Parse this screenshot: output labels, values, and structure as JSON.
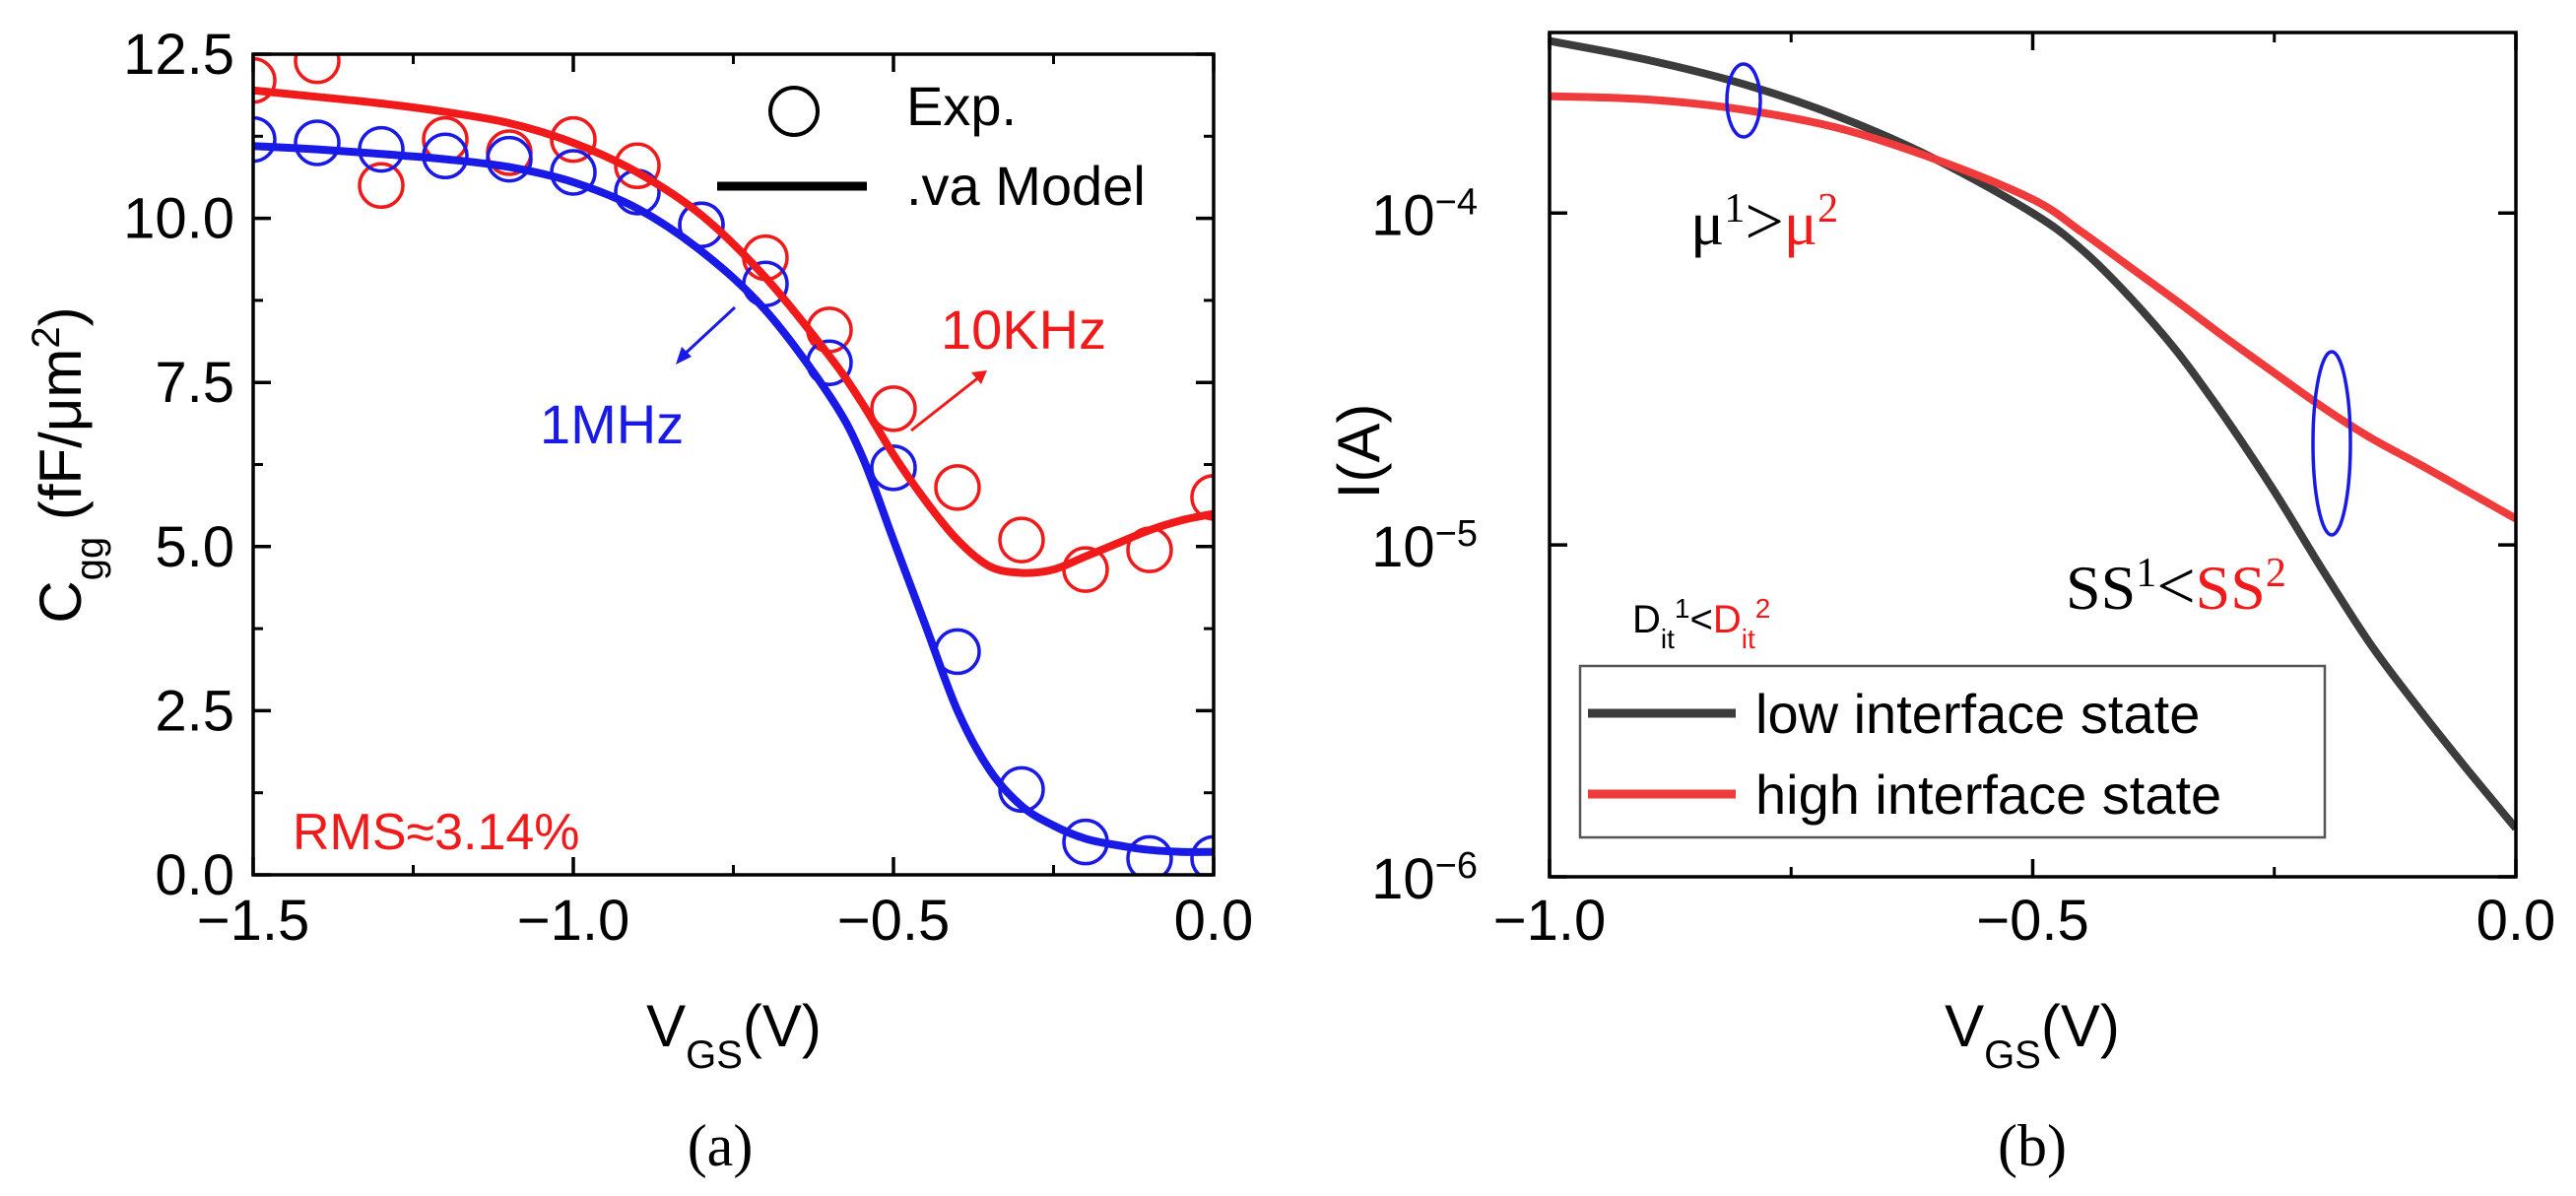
{
  "colors": {
    "red": "#f01a1a",
    "blue": "#1a1ae6",
    "black": "#000000",
    "dark": "#3c3c3c",
    "lightred": "#ef3b3b"
  },
  "chart_data": [
    {
      "id": "a",
      "type": "line",
      "panel_label": "(a)",
      "xlabel": {
        "main": "V",
        "sub": "GS",
        "tail": "(V)"
      },
      "ylabel": {
        "main": "C",
        "sub": "gg",
        "tail": " (fF/μm",
        "sup": "2",
        "close": ")"
      },
      "xlim": [
        -1.5,
        0.0
      ],
      "ylim": [
        0.0,
        12.5
      ],
      "xticks": [
        -1.5,
        -1.0,
        -0.5,
        0.0
      ],
      "xtick_labels": [
        "−1.5",
        "−1.0",
        "−0.5",
        "0.0"
      ],
      "yticks": [
        0.0,
        2.5,
        5.0,
        7.5,
        10.0,
        12.5
      ],
      "ytick_labels": [
        "0.0",
        "2.5",
        "5.0",
        "7.5",
        "10.0",
        "12.5"
      ],
      "legend": {
        "placement": "top-right",
        "entries": [
          {
            "label": "Exp.",
            "marker": "circle"
          },
          {
            "label": ".va Model",
            "marker": "line"
          }
        ]
      },
      "annotations": {
        "hf": "1MHz",
        "lf": "10KHz",
        "rms": "RMS≈3.14%"
      },
      "series": [
        {
          "name": "10KHz Exp.",
          "kind": "scatter",
          "color": "#f01a1a",
          "x": [
            -1.5,
            -1.4,
            -1.3,
            -1.2,
            -1.1,
            -1.0,
            -0.9,
            -0.8,
            -0.7,
            -0.6,
            -0.5,
            -0.4,
            -0.3,
            -0.2,
            -0.1,
            0.0
          ],
          "y": [
            12.1,
            12.4,
            10.5,
            11.2,
            11.0,
            11.2,
            10.8,
            9.9,
            9.4,
            8.3,
            7.1,
            5.9,
            5.1,
            4.65,
            4.95,
            5.75
          ]
        },
        {
          "name": "10KHz .va Model",
          "kind": "line",
          "color": "#f01a1a",
          "x": [
            -1.5,
            -1.4,
            -1.3,
            -1.2,
            -1.1,
            -1.0,
            -0.9,
            -0.8,
            -0.7,
            -0.6,
            -0.55,
            -0.5,
            -0.45,
            -0.4,
            -0.35,
            -0.3,
            -0.25,
            -0.2,
            -0.15,
            -0.1,
            -0.05,
            0.0
          ],
          "y": [
            11.95,
            11.85,
            11.75,
            11.62,
            11.45,
            11.15,
            10.7,
            10.05,
            9.1,
            7.9,
            7.2,
            6.4,
            5.7,
            5.1,
            4.7,
            4.6,
            4.65,
            4.85,
            5.05,
            5.25,
            5.4,
            5.5
          ]
        },
        {
          "name": "1MHz Exp.",
          "kind": "scatter",
          "color": "#1a1ae6",
          "x": [
            -1.5,
            -1.4,
            -1.3,
            -1.2,
            -1.1,
            -1.0,
            -0.9,
            -0.8,
            -0.7,
            -0.6,
            -0.5,
            -0.4,
            -0.3,
            -0.2,
            -0.1,
            0.0
          ],
          "y": [
            11.2,
            11.15,
            11.05,
            10.95,
            10.9,
            10.7,
            10.4,
            9.9,
            9.0,
            7.8,
            6.2,
            3.4,
            1.3,
            0.5,
            0.25,
            0.25
          ]
        },
        {
          "name": "1MHz .va Model",
          "kind": "line",
          "color": "#1a1ae6",
          "x": [
            -1.5,
            -1.4,
            -1.3,
            -1.2,
            -1.1,
            -1.0,
            -0.9,
            -0.8,
            -0.7,
            -0.6,
            -0.55,
            -0.5,
            -0.45,
            -0.4,
            -0.35,
            -0.3,
            -0.25,
            -0.2,
            -0.15,
            -0.1,
            -0.05,
            0.0
          ],
          "y": [
            11.1,
            11.05,
            10.98,
            10.9,
            10.78,
            10.55,
            10.15,
            9.5,
            8.6,
            7.3,
            6.4,
            5.1,
            3.8,
            2.5,
            1.6,
            1.05,
            0.75,
            0.55,
            0.45,
            0.38,
            0.35,
            0.35
          ]
        }
      ]
    },
    {
      "id": "b",
      "type": "line",
      "panel_label": "(b)",
      "xlabel": {
        "main": "V",
        "sub": "GS",
        "tail": "(V)"
      },
      "ylabel": {
        "main": "I(A)"
      },
      "yscale": "log",
      "xlim": [
        -1.0,
        0.0
      ],
      "ylim": [
        1e-06,
        0.00035
      ],
      "xticks": [
        -1.0,
        -0.5,
        0.0
      ],
      "xtick_labels": [
        "−1.0",
        "−0.5",
        "0.0"
      ],
      "yticks": [
        1e-06,
        1e-05,
        0.0001
      ],
      "ytick_labels": [
        {
          "base": "10",
          "exp": "−6"
        },
        {
          "base": "10",
          "exp": "−5"
        },
        {
          "base": "10",
          "exp": "−4"
        }
      ],
      "legend": {
        "placement": "bottom-left",
        "entries": [
          {
            "label": "low interface state",
            "color": "#3c3c3c"
          },
          {
            "label": "high interface state",
            "color": "#ef3b3b"
          }
        ]
      },
      "annotations": {
        "mu": {
          "left": "μ",
          "left_sup": "1",
          "op": ">",
          "right": "μ",
          "right_sup": "2"
        },
        "ss": {
          "left": "SS",
          "left_sup": "1",
          "op": "<",
          "right": "SS",
          "right_sup": "2"
        },
        "dit": {
          "left": "D",
          "left_sub": "it",
          "left_sup": "1",
          "op": "<",
          "right": "D",
          "right_sub": "it",
          "right_sup": "2"
        }
      },
      "series": [
        {
          "name": "low interface state",
          "color": "#3c3c3c",
          "x": [
            -1.0,
            -0.9,
            -0.8,
            -0.7,
            -0.6,
            -0.5,
            -0.45,
            -0.4,
            -0.35,
            -0.3,
            -0.25,
            -0.2,
            -0.15,
            -0.1,
            -0.05,
            0.0
          ],
          "y": [
            0.00033,
            0.00029,
            0.000245,
            0.000195,
            0.000145,
            0.0001,
            7.8e-05,
            5.6e-05,
            3.8e-05,
            2.4e-05,
            1.45e-05,
            8.4e-06,
            5e-06,
            3.2e-06,
            2.1e-06,
            1.4e-06
          ]
        },
        {
          "name": "high interface state",
          "color": "#ef3b3b",
          "x": [
            -1.0,
            -0.9,
            -0.8,
            -0.7,
            -0.6,
            -0.5,
            -0.45,
            -0.4,
            -0.35,
            -0.3,
            -0.25,
            -0.2,
            -0.15,
            -0.1,
            -0.05,
            0.0
          ],
          "y": [
            0.000225,
            0.00022,
            0.000205,
            0.00018,
            0.000145,
            0.00011,
            8.8e-05,
            6.9e-05,
            5.4e-05,
            4.2e-05,
            3.3e-05,
            2.6e-05,
            2.1e-05,
            1.75e-05,
            1.45e-05,
            1.2e-05
          ]
        }
      ]
    }
  ]
}
